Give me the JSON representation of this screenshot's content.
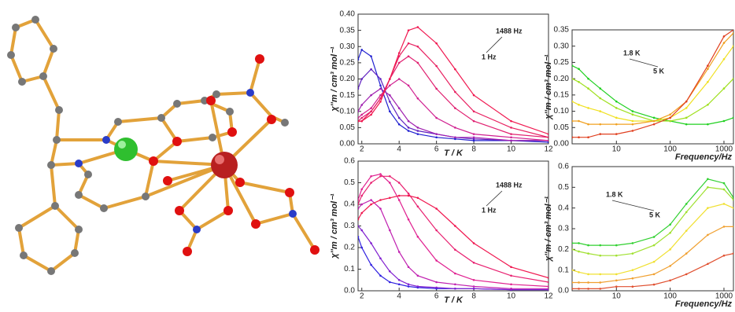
{
  "chart_data": [
    {
      "type": "line",
      "xlabel": "T / K",
      "ylabel": "χ''m / cm³ mol⁻¹",
      "x": [
        1.8,
        2,
        2.5,
        3,
        3.5,
        4,
        4.5,
        5,
        6,
        7,
        8,
        10,
        12
      ],
      "xlim": [
        1.8,
        12
      ],
      "xticks": [
        2,
        4,
        6,
        8,
        10,
        12
      ],
      "ylim": [
        0,
        0.4
      ],
      "yticks": [
        {
          "value": 0,
          "label": "0.00"
        },
        {
          "value": 0.05,
          "label": "0.05"
        },
        {
          "value": 0.1,
          "label": "0.10"
        },
        {
          "value": 0.15,
          "label": "0.15"
        },
        {
          "value": 0.2,
          "label": "0.20"
        },
        {
          "value": 0.25,
          "label": "0.25"
        },
        {
          "value": 0.3,
          "label": "0.30"
        },
        {
          "value": 0.35,
          "label": "0.35"
        },
        {
          "value": 0.4,
          "label": "0.40"
        }
      ],
      "annotations": [
        {
          "text": "1488 Hz",
          "color": "#e8203c"
        },
        {
          "text": "1 Hz",
          "color": "#2020d0"
        }
      ],
      "series": [
        {
          "color": "#2020d0",
          "values": [
            0.26,
            0.29,
            0.27,
            0.18,
            0.1,
            0.06,
            0.04,
            0.03,
            0.02,
            0.015,
            0.01,
            0.01,
            0.005
          ]
        },
        {
          "color": "#6020c0",
          "values": [
            0.17,
            0.2,
            0.23,
            0.2,
            0.13,
            0.08,
            0.05,
            0.04,
            0.03,
            0.02,
            0.015,
            0.01,
            0.01
          ]
        },
        {
          "color": "#a020b0",
          "values": [
            0.1,
            0.12,
            0.15,
            0.17,
            0.15,
            0.11,
            0.07,
            0.05,
            0.03,
            0.02,
            0.02,
            0.01,
            0.01
          ]
        },
        {
          "color": "#d02090",
          "values": [
            0.08,
            0.09,
            0.11,
            0.15,
            0.18,
            0.2,
            0.18,
            0.14,
            0.08,
            0.05,
            0.03,
            0.02,
            0.01
          ]
        },
        {
          "color": "#e02070",
          "values": [
            0.07,
            0.08,
            0.1,
            0.14,
            0.2,
            0.25,
            0.27,
            0.25,
            0.17,
            0.11,
            0.07,
            0.03,
            0.02
          ]
        },
        {
          "color": "#e82060",
          "values": [
            0.07,
            0.07,
            0.1,
            0.14,
            0.2,
            0.27,
            0.31,
            0.3,
            0.24,
            0.16,
            0.1,
            0.05,
            0.02
          ]
        },
        {
          "color": "#f01850",
          "values": [
            0.07,
            0.07,
            0.09,
            0.13,
            0.2,
            0.28,
            0.35,
            0.36,
            0.31,
            0.23,
            0.15,
            0.07,
            0.03
          ]
        }
      ]
    },
    {
      "type": "line",
      "xlabel": "Frequency/Hz",
      "ylabel": "χ''m / cm³ mol⁻¹",
      "log_x": true,
      "x": [
        1.5,
        2,
        3,
        5,
        10,
        20,
        50,
        100,
        200,
        500,
        1000,
        1500
      ],
      "xlim": [
        1.5,
        1500
      ],
      "xticks": [
        10,
        100,
        1000
      ],
      "ylim": [
        0,
        0.35
      ],
      "yticks": [
        {
          "value": 0,
          "label": "0.00"
        },
        {
          "value": 0.05,
          "label": "0.05"
        },
        {
          "value": 0.1,
          "label": "0.10"
        },
        {
          "value": 0.15,
          "label": "0.15"
        },
        {
          "value": 0.2,
          "label": "0.20"
        },
        {
          "value": 0.25,
          "label": "0.25"
        },
        {
          "value": 0.3,
          "label": "0.30"
        },
        {
          "value": 0.35,
          "label": "0.35"
        }
      ],
      "annotations": [
        {
          "text": "1.8 K",
          "color": "#20d020"
        },
        {
          "text": "5 K",
          "color": "#e02020"
        }
      ],
      "series": [
        {
          "color": "#20d020",
          "values": [
            0.24,
            0.23,
            0.2,
            0.17,
            0.13,
            0.1,
            0.08,
            0.07,
            0.06,
            0.06,
            0.07,
            0.08
          ]
        },
        {
          "color": "#a0e020",
          "values": [
            0.2,
            0.19,
            0.17,
            0.14,
            0.11,
            0.09,
            0.07,
            0.07,
            0.08,
            0.12,
            0.17,
            0.2
          ]
        },
        {
          "color": "#f0e020",
          "values": [
            0.13,
            0.12,
            0.11,
            0.1,
            0.08,
            0.07,
            0.07,
            0.08,
            0.11,
            0.19,
            0.26,
            0.3
          ]
        },
        {
          "color": "#f0a020",
          "values": [
            0.07,
            0.07,
            0.06,
            0.06,
            0.06,
            0.06,
            0.07,
            0.09,
            0.13,
            0.23,
            0.31,
            0.34
          ]
        },
        {
          "color": "#e04020",
          "values": [
            0.02,
            0.02,
            0.02,
            0.03,
            0.03,
            0.04,
            0.06,
            0.08,
            0.13,
            0.24,
            0.33,
            0.35
          ]
        }
      ]
    },
    {
      "type": "line",
      "xlabel": "T / K",
      "ylabel": "χ''m / cm³ mol⁻¹",
      "x": [
        1.8,
        2,
        2.5,
        3,
        3.5,
        4,
        4.5,
        5,
        6,
        7,
        8,
        10,
        12
      ],
      "xlim": [
        1.8,
        12
      ],
      "xticks": [
        2,
        4,
        6,
        8,
        10,
        12
      ],
      "ylim": [
        0,
        0.6
      ],
      "yticks": [
        {
          "value": 0,
          "label": "0.0"
        },
        {
          "value": 0.1,
          "label": "0.1"
        },
        {
          "value": 0.2,
          "label": "0.2"
        },
        {
          "value": 0.3,
          "label": "0.3"
        },
        {
          "value": 0.4,
          "label": "0.4"
        },
        {
          "value": 0.5,
          "label": "0.5"
        },
        {
          "value": 0.6,
          "label": "0.6"
        }
      ],
      "annotations": [
        {
          "text": "1488 Hz",
          "color": "#e8203c"
        },
        {
          "text": "1 Hz",
          "color": "#2020d0"
        }
      ],
      "series": [
        {
          "color": "#3020e0",
          "values": [
            0.25,
            0.2,
            0.12,
            0.07,
            0.04,
            0.03,
            0.02,
            0.015,
            0.01,
            0.01,
            0.01,
            0.005,
            0.005
          ]
        },
        {
          "color": "#8020d0",
          "values": [
            0.3,
            0.28,
            0.22,
            0.15,
            0.09,
            0.05,
            0.03,
            0.02,
            0.015,
            0.01,
            0.01,
            0.005,
            0.005
          ]
        },
        {
          "color": "#c020b0",
          "values": [
            0.38,
            0.4,
            0.42,
            0.38,
            0.28,
            0.18,
            0.11,
            0.07,
            0.04,
            0.03,
            0.02,
            0.01,
            0.01
          ]
        },
        {
          "color": "#e02090",
          "values": [
            0.42,
            0.47,
            0.53,
            0.54,
            0.5,
            0.42,
            0.33,
            0.25,
            0.14,
            0.08,
            0.05,
            0.03,
            0.02
          ]
        },
        {
          "color": "#e82070",
          "values": [
            0.4,
            0.44,
            0.5,
            0.53,
            0.53,
            0.5,
            0.45,
            0.39,
            0.28,
            0.19,
            0.13,
            0.07,
            0.04
          ]
        },
        {
          "color": "#f01850",
          "values": [
            0.33,
            0.36,
            0.4,
            0.42,
            0.43,
            0.44,
            0.44,
            0.43,
            0.38,
            0.3,
            0.22,
            0.11,
            0.06
          ]
        }
      ]
    },
    {
      "type": "line",
      "xlabel": "Frequency/Hz",
      "ylabel": "χ''m / cm³ mol⁻¹",
      "log_x": true,
      "x": [
        1.5,
        2,
        3,
        5,
        10,
        20,
        50,
        100,
        200,
        500,
        1000,
        1500
      ],
      "xlim": [
        1.5,
        1500
      ],
      "xticks": [
        10,
        100,
        1000
      ],
      "ylim": [
        0,
        0.6
      ],
      "yticks": [
        {
          "value": 0,
          "label": "0.0"
        },
        {
          "value": 0.1,
          "label": "0.1"
        },
        {
          "value": 0.2,
          "label": "0.2"
        },
        {
          "value": 0.3,
          "label": "0.3"
        },
        {
          "value": 0.4,
          "label": "0.4"
        },
        {
          "value": 0.5,
          "label": "0.5"
        },
        {
          "value": 0.6,
          "label": "0.6"
        }
      ],
      "annotations": [
        {
          "text": "1.8 K",
          "color": "#20d020"
        },
        {
          "text": "5 K",
          "color": "#e02020"
        }
      ],
      "series": [
        {
          "color": "#30d030",
          "values": [
            0.23,
            0.23,
            0.22,
            0.22,
            0.22,
            0.23,
            0.26,
            0.32,
            0.42,
            0.54,
            0.52,
            0.45
          ]
        },
        {
          "color": "#a0e030",
          "values": [
            0.2,
            0.19,
            0.18,
            0.17,
            0.17,
            0.18,
            0.22,
            0.28,
            0.38,
            0.5,
            0.49,
            0.44
          ]
        },
        {
          "color": "#f0e030",
          "values": [
            0.1,
            0.09,
            0.08,
            0.08,
            0.08,
            0.1,
            0.14,
            0.2,
            0.29,
            0.4,
            0.42,
            0.4
          ]
        },
        {
          "color": "#f0a030",
          "values": [
            0.04,
            0.04,
            0.04,
            0.04,
            0.05,
            0.06,
            0.08,
            0.12,
            0.18,
            0.27,
            0.31,
            0.31
          ]
        },
        {
          "color": "#e05030",
          "values": [
            0.01,
            0.01,
            0.01,
            0.01,
            0.02,
            0.02,
            0.03,
            0.05,
            0.08,
            0.13,
            0.17,
            0.18
          ]
        }
      ]
    }
  ]
}
